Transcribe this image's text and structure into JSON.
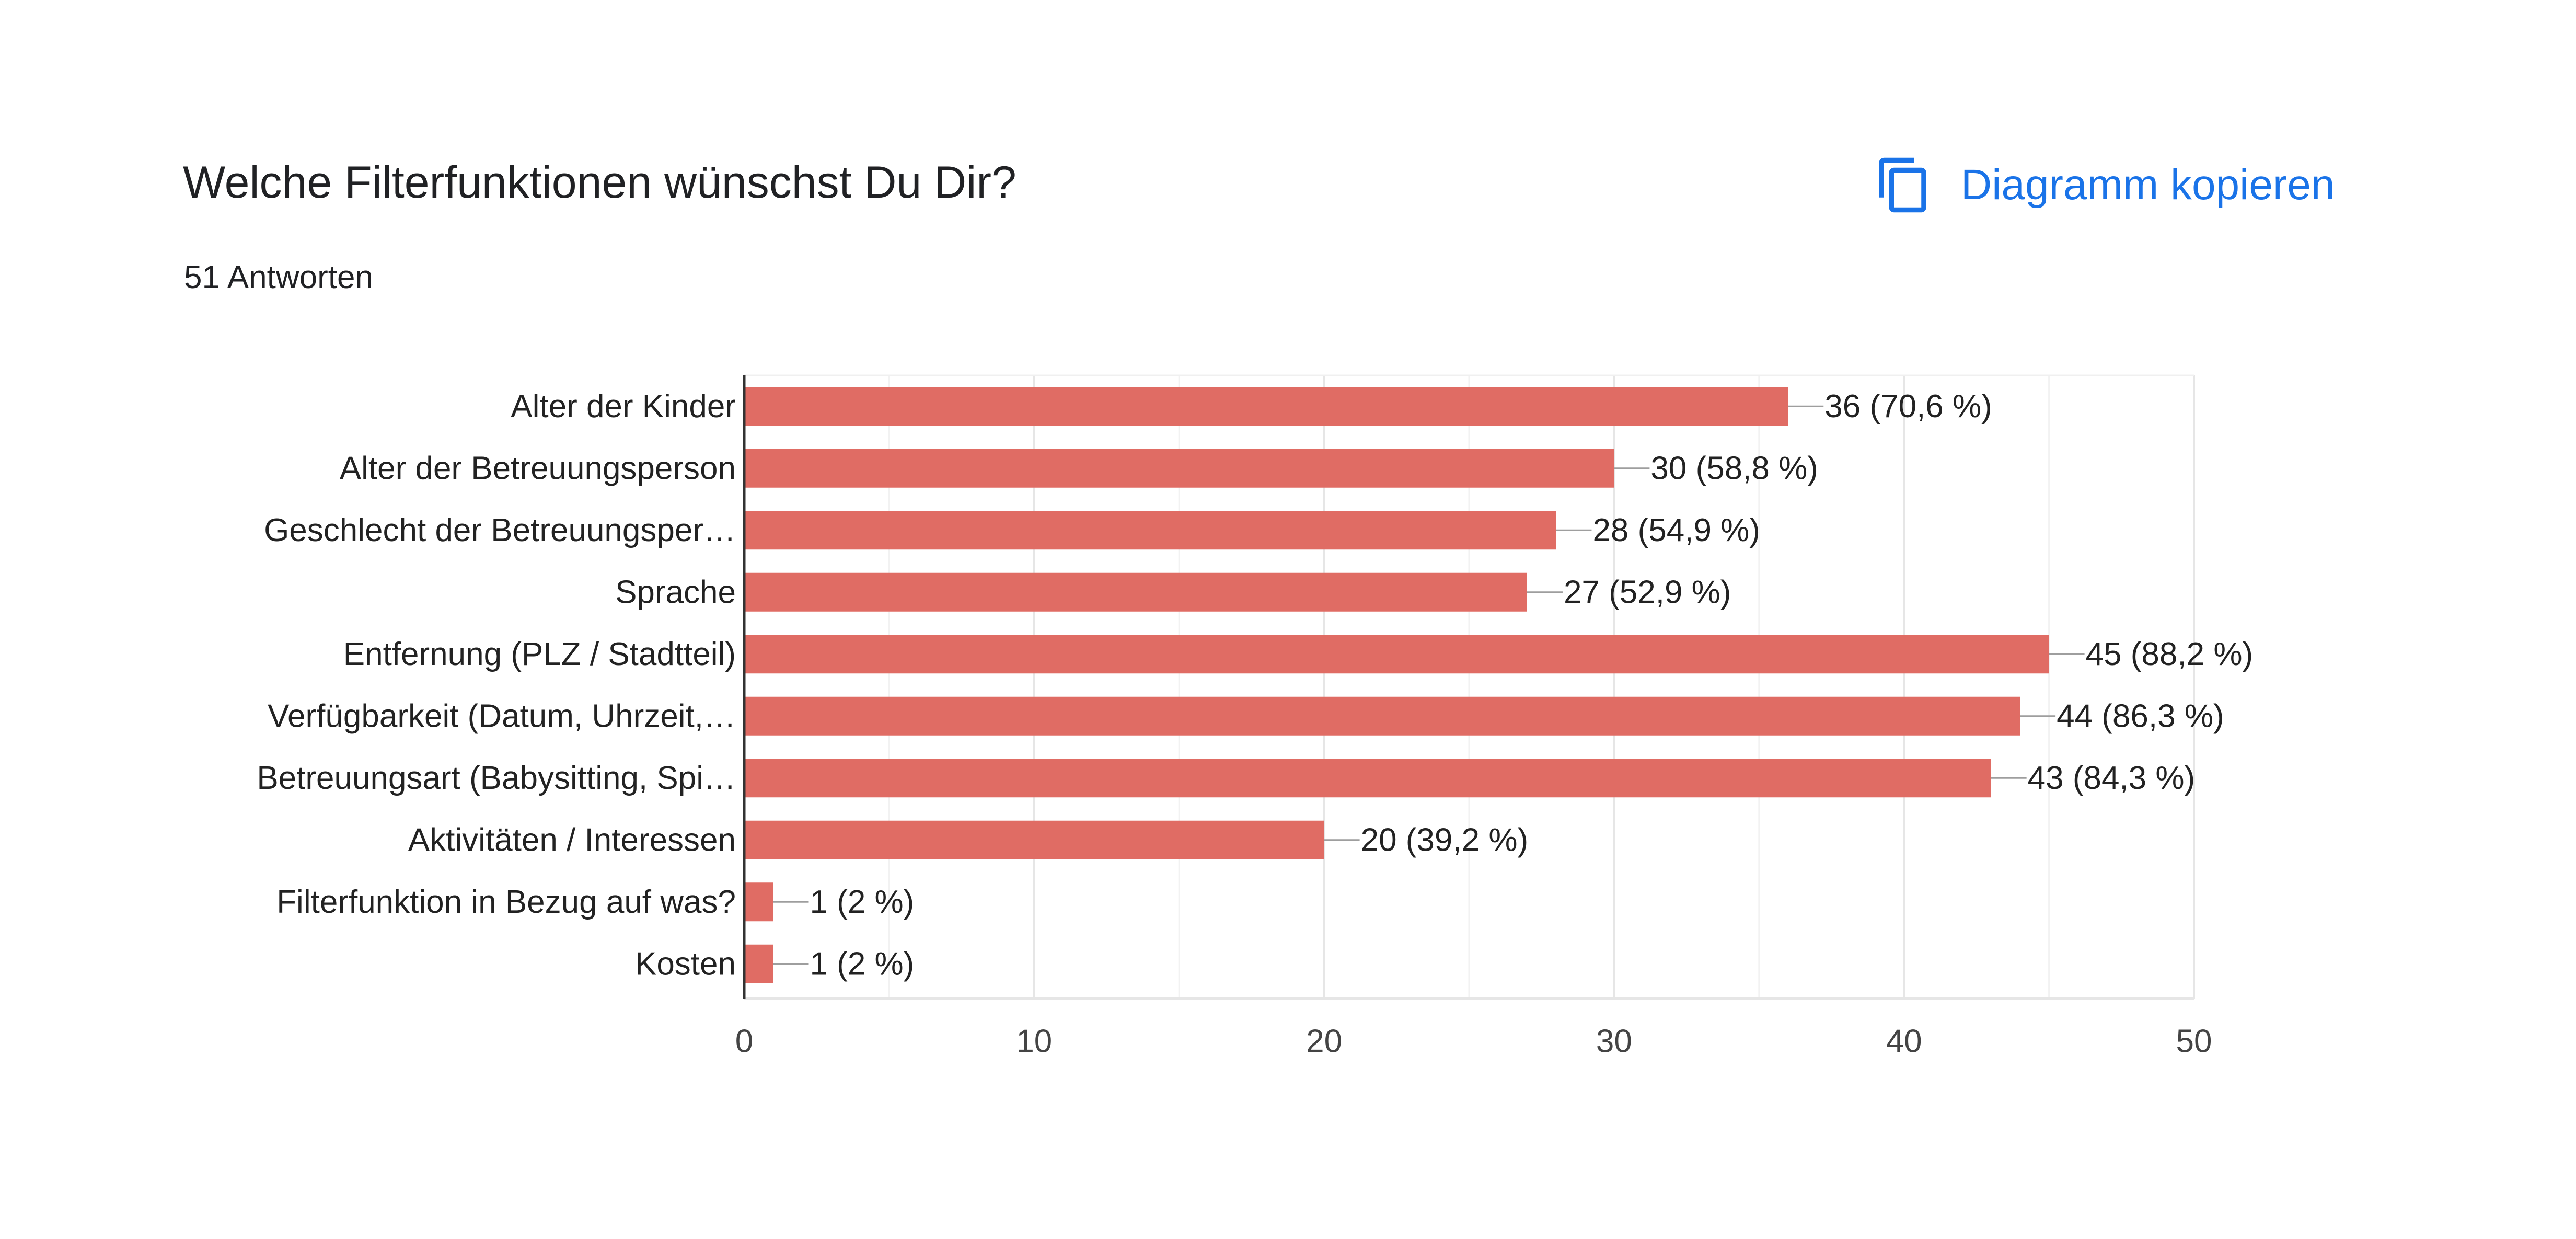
{
  "header": {
    "title": "Welche Filterfunktionen wünschst Du Dir?",
    "responses": "51 Antworten",
    "copy_label": "Diagramm kopieren",
    "copy_icon": "copy-icon",
    "accent_color": "#1a73e8"
  },
  "chart_data": {
    "type": "bar",
    "orientation": "horizontal",
    "categories": [
      "Alter der Kinder",
      "Alter der Betreuungsperson",
      "Geschlecht der Betreuungsper…",
      "Sprache",
      "Entfernung (PLZ / Stadtteil)",
      "Verfügbarkeit (Datum, Uhrzeit,…",
      "Betreuungsart (Babysitting, Spi…",
      "Aktivitäten / Interessen",
      "Filterfunktion in Bezug auf was?",
      "Kosten"
    ],
    "values": [
      36,
      30,
      28,
      27,
      45,
      44,
      43,
      20,
      1,
      1
    ],
    "labels": [
      "36 (70,6 %)",
      "30 (58,8 %)",
      "28 (54,9 %)",
      "27 (52,9 %)",
      "45 (88,2 %)",
      "44 (86,3 %)",
      "43 (84,3 %)",
      "20 (39,2 %)",
      "1 (2 %)",
      "1 (2 %)"
    ],
    "xlim": [
      0,
      50
    ],
    "xticks": [
      0,
      10,
      20,
      30,
      40,
      50
    ],
    "minor_grid_step": 5,
    "grid": true,
    "bar_color": "#e06c64"
  }
}
